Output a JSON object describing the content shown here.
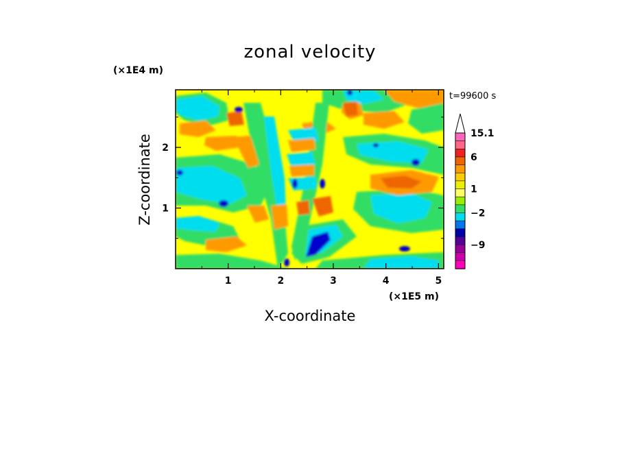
{
  "chart_data": {
    "type": "heatmap",
    "title": "zonal velocity",
    "xlabel": "X-coordinate",
    "ylabel": "Z-coordinate",
    "x_multiplier": "(×1E5 m)",
    "y_multiplier": "(×1E4 m)",
    "time_label": "t=99600 s",
    "xlim": [
      0,
      5.1
    ],
    "ylim": [
      0,
      2.95
    ],
    "x_ticks": [
      {
        "value": 1,
        "label": "1"
      },
      {
        "value": 2,
        "label": "2"
      },
      {
        "value": 3,
        "label": "3"
      },
      {
        "value": 4,
        "label": "4"
      },
      {
        "value": 5,
        "label": "5"
      }
    ],
    "y_ticks": [
      {
        "value": 1,
        "label": "1"
      },
      {
        "value": 2,
        "label": "2"
      }
    ],
    "colorbar": {
      "max_arrow_color": "#ffffff",
      "bands": [
        {
          "color": "#ff66bb"
        },
        {
          "color": "#ff6688"
        },
        {
          "color": "#ee2222"
        },
        {
          "color": "#ee6600"
        },
        {
          "color": "#ff9900"
        },
        {
          "color": "#ffcc00"
        },
        {
          "color": "#eeee00"
        },
        {
          "color": "#ffff66"
        },
        {
          "color": "#99ee00"
        },
        {
          "color": "#33dd66"
        },
        {
          "color": "#00ddee"
        },
        {
          "color": "#0077ee"
        },
        {
          "color": "#0000aa"
        },
        {
          "color": "#550099"
        },
        {
          "color": "#990099"
        },
        {
          "color": "#cc00aa"
        },
        {
          "color": "#ff00bb"
        }
      ],
      "labels": [
        {
          "text": "15.1",
          "at_band": 0
        },
        {
          "text": "6",
          "at_band": 3
        },
        {
          "text": "1",
          "at_band": 7
        },
        {
          "text": "−2",
          "at_band": 10
        },
        {
          "text": "−9",
          "at_band": 14
        }
      ]
    },
    "field_palette": {
      "strong_pos": "#ee6600",
      "pos": "#ff9900",
      "weak_pos": "#ffcc00",
      "near_zero": "#ffff00",
      "weak_neg": "#33dd66",
      "neg": "#00ddee",
      "strong_neg": "#0000cc"
    }
  }
}
